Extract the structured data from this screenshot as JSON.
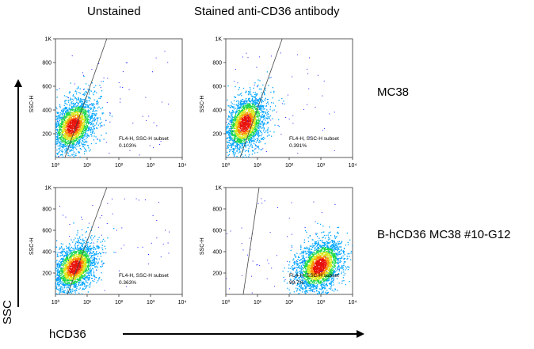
{
  "column_titles": [
    "Unstained",
    "Stained anti-CD36 antibody"
  ],
  "row_labels": [
    "MC38",
    "B-hCD36 MC38 #10-G12"
  ],
  "axis_words": {
    "y": "SSC",
    "x": "hCD36"
  },
  "chart_data": [
    {
      "type": "scatter",
      "column": "Unstained",
      "row": "MC38",
      "ylabel": "SSC-H",
      "xscale": "log",
      "xlim": [
        1,
        10000
      ],
      "ylim": [
        0,
        1000
      ],
      "xticks": [
        "10⁰",
        "10¹",
        "10²",
        "10³",
        "10⁴"
      ],
      "yticks": [
        "200",
        "400",
        "600",
        "800",
        "1K"
      ],
      "gate": {
        "name": "FL4-H, SSC-H subset",
        "percent": "0.103%"
      },
      "population": {
        "x_center_log": 0.55,
        "y_center": 270,
        "spread_log": 0.35,
        "spread_y": 110,
        "events": 2200
      }
    },
    {
      "type": "scatter",
      "column": "Stained anti-CD36 antibody",
      "row": "MC38",
      "ylabel": "SSC-H",
      "xscale": "log",
      "xlim": [
        1,
        10000
      ],
      "ylim": [
        0,
        1000
      ],
      "xticks": [
        "10⁰",
        "10¹",
        "10²",
        "10³",
        "10⁴"
      ],
      "yticks": [
        "200",
        "400",
        "600",
        "800",
        "1K"
      ],
      "gate": {
        "name": "FL4-H, SSC-H subset",
        "percent": "0.391%"
      },
      "population": {
        "x_center_log": 0.6,
        "y_center": 290,
        "spread_log": 0.33,
        "spread_y": 115,
        "events": 2200
      }
    },
    {
      "type": "scatter",
      "column": "Unstained",
      "row": "B-hCD36 MC38 #10-G12",
      "ylabel": "SSC-H",
      "xscale": "log",
      "xlim": [
        1,
        10000
      ],
      "ylim": [
        0,
        1000
      ],
      "xticks": [
        "10⁰",
        "10¹",
        "10²",
        "10³",
        "10⁴"
      ],
      "yticks": [
        "200",
        "400",
        "600",
        "800",
        "1K"
      ],
      "gate": {
        "name": "FL4-H, SSC-H subset",
        "percent": "0.363%"
      },
      "population": {
        "x_center_log": 0.6,
        "y_center": 260,
        "spread_log": 0.35,
        "spread_y": 110,
        "events": 2200
      }
    },
    {
      "type": "scatter",
      "column": "Stained anti-CD36 antibody",
      "row": "B-hCD36 MC38 #10-G12",
      "ylabel": "SSC-H",
      "xscale": "log",
      "xlim": [
        1,
        10000
      ],
      "ylim": [
        0,
        1000
      ],
      "xticks": [
        "10⁰",
        "10¹",
        "10²",
        "10³",
        "10⁴"
      ],
      "yticks": [
        "200",
        "400",
        "600",
        "800",
        "1K"
      ],
      "gate": {
        "name": "FL4-H, SSC-H subset",
        "percent": "99.7%"
      },
      "population": {
        "x_center_log": 2.95,
        "y_center": 270,
        "spread_log": 0.38,
        "spread_y": 120,
        "events": 2400
      }
    }
  ]
}
